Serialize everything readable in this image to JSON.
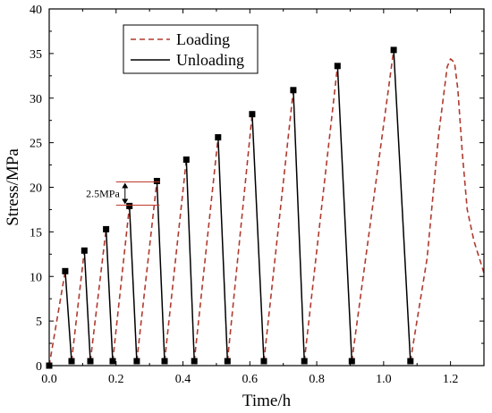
{
  "chart_data": {
    "type": "line",
    "xlabel": "Time/h",
    "ylabel": "Stress/MPa",
    "xlim": [
      0.0,
      1.3
    ],
    "ylim": [
      0,
      40
    ],
    "x_ticks": [
      "0.0",
      "0.2",
      "0.4",
      "0.6",
      "0.8",
      "1.0",
      "1.2"
    ],
    "x_tick_values": [
      0.0,
      0.2,
      0.4,
      0.6,
      0.8,
      1.0,
      1.2
    ],
    "y_ticks": [
      "0",
      "5",
      "10",
      "15",
      "20",
      "25",
      "30",
      "35",
      "40"
    ],
    "y_tick_values": [
      0,
      5,
      10,
      15,
      20,
      25,
      30,
      35,
      40
    ],
    "grid": false,
    "legend_position": "top-center",
    "series": [
      {
        "name": "Loading",
        "style": "dashed",
        "color": "#b03a2e",
        "segments": [
          [
            [
              0.0,
              0.0
            ],
            [
              0.048,
              10.6
            ]
          ],
          [
            [
              0.067,
              0.5
            ],
            [
              0.105,
              12.9
            ]
          ],
          [
            [
              0.123,
              0.5
            ],
            [
              0.17,
              15.3
            ]
          ],
          [
            [
              0.19,
              0.5
            ],
            [
              0.24,
              17.9
            ]
          ],
          [
            [
              0.262,
              0.5
            ],
            [
              0.322,
              20.7
            ]
          ],
          [
            [
              0.345,
              0.5
            ],
            [
              0.41,
              23.1
            ]
          ],
          [
            [
              0.434,
              0.5
            ],
            [
              0.505,
              25.6
            ]
          ],
          [
            [
              0.533,
              0.5
            ],
            [
              0.607,
              28.2
            ]
          ],
          [
            [
              0.642,
              0.5
            ],
            [
              0.73,
              30.9
            ]
          ],
          [
            [
              0.763,
              0.5
            ],
            [
              0.862,
              33.6
            ]
          ],
          [
            [
              0.905,
              0.5
            ],
            [
              1.03,
              35.4
            ]
          ],
          [
            [
              1.08,
              0.5
            ],
            [
              1.13,
              12.0
            ],
            [
              1.165,
              26.0
            ],
            [
              1.19,
              33.5
            ],
            [
              1.2,
              34.4
            ],
            [
              1.212,
              34.0
            ],
            [
              1.222,
              31.0
            ],
            [
              1.235,
              24.0
            ],
            [
              1.25,
              17.5
            ],
            [
              1.27,
              14.0
            ],
            [
              1.3,
              10.4
            ]
          ]
        ]
      },
      {
        "name": "Unloading",
        "style": "solid",
        "color": "#000000",
        "segments": [
          [
            [
              0.048,
              10.6
            ],
            [
              0.067,
              0.5
            ]
          ],
          [
            [
              0.105,
              12.9
            ],
            [
              0.123,
              0.5
            ]
          ],
          [
            [
              0.17,
              15.3
            ],
            [
              0.19,
              0.5
            ]
          ],
          [
            [
              0.24,
              17.9
            ],
            [
              0.262,
              0.5
            ]
          ],
          [
            [
              0.322,
              20.7
            ],
            [
              0.345,
              0.5
            ]
          ],
          [
            [
              0.41,
              23.1
            ],
            [
              0.434,
              0.5
            ]
          ],
          [
            [
              0.505,
              25.6
            ],
            [
              0.533,
              0.5
            ]
          ],
          [
            [
              0.607,
              28.2
            ],
            [
              0.642,
              0.5
            ]
          ],
          [
            [
              0.73,
              30.9
            ],
            [
              0.763,
              0.5
            ]
          ],
          [
            [
              0.862,
              33.6
            ],
            [
              0.905,
              0.5
            ]
          ],
          [
            [
              1.03,
              35.4
            ],
            [
              1.08,
              0.5
            ]
          ]
        ]
      }
    ],
    "markers": [
      [
        0.0,
        0.0
      ],
      [
        0.048,
        10.6
      ],
      [
        0.067,
        0.5
      ],
      [
        0.105,
        12.9
      ],
      [
        0.123,
        0.5
      ],
      [
        0.17,
        15.3
      ],
      [
        0.19,
        0.5
      ],
      [
        0.24,
        17.9
      ],
      [
        0.262,
        0.5
      ],
      [
        0.322,
        20.7
      ],
      [
        0.345,
        0.5
      ],
      [
        0.41,
        23.1
      ],
      [
        0.434,
        0.5
      ],
      [
        0.505,
        25.6
      ],
      [
        0.533,
        0.5
      ],
      [
        0.607,
        28.2
      ],
      [
        0.642,
        0.5
      ],
      [
        0.73,
        30.9
      ],
      [
        0.763,
        0.5
      ],
      [
        0.862,
        33.6
      ],
      [
        0.905,
        0.5
      ],
      [
        1.03,
        35.4
      ],
      [
        1.08,
        0.5
      ]
    ],
    "annotation": {
      "text": "2.5MPa",
      "upper_level": 20.6,
      "lower_level": 18.0,
      "x_from": 0.2,
      "x_to": 0.33,
      "color": "#c0392b"
    }
  }
}
